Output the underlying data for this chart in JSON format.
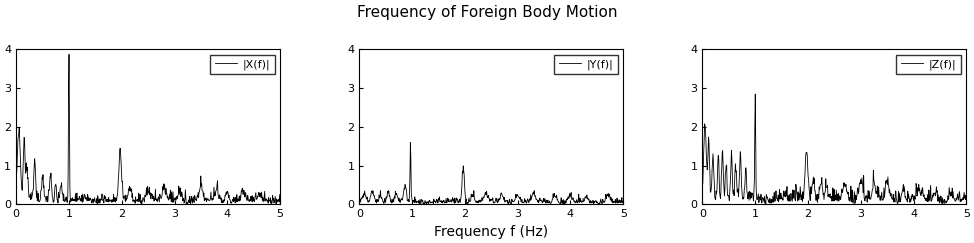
{
  "title": "Frequency of Foreign Body Motion",
  "xlabel": "Frequency f (Hz)",
  "ylim": [
    0,
    4
  ],
  "xlim": [
    0,
    5
  ],
  "yticks": [
    0,
    1,
    2,
    3,
    4
  ],
  "xticks": [
    0,
    1,
    2,
    3,
    4,
    5
  ],
  "legend_x": "|X(f)|",
  "legend_y": "|Y(f)|",
  "legend_z": "|Z(f)|",
  "title_fontsize": 11,
  "label_fontsize": 10,
  "tick_fontsize": 8,
  "legend_fontsize": 8,
  "line_color": "black",
  "background_color": "white",
  "line_width": 0.6,
  "figsize": [
    9.74,
    2.43
  ],
  "dpi": 100
}
